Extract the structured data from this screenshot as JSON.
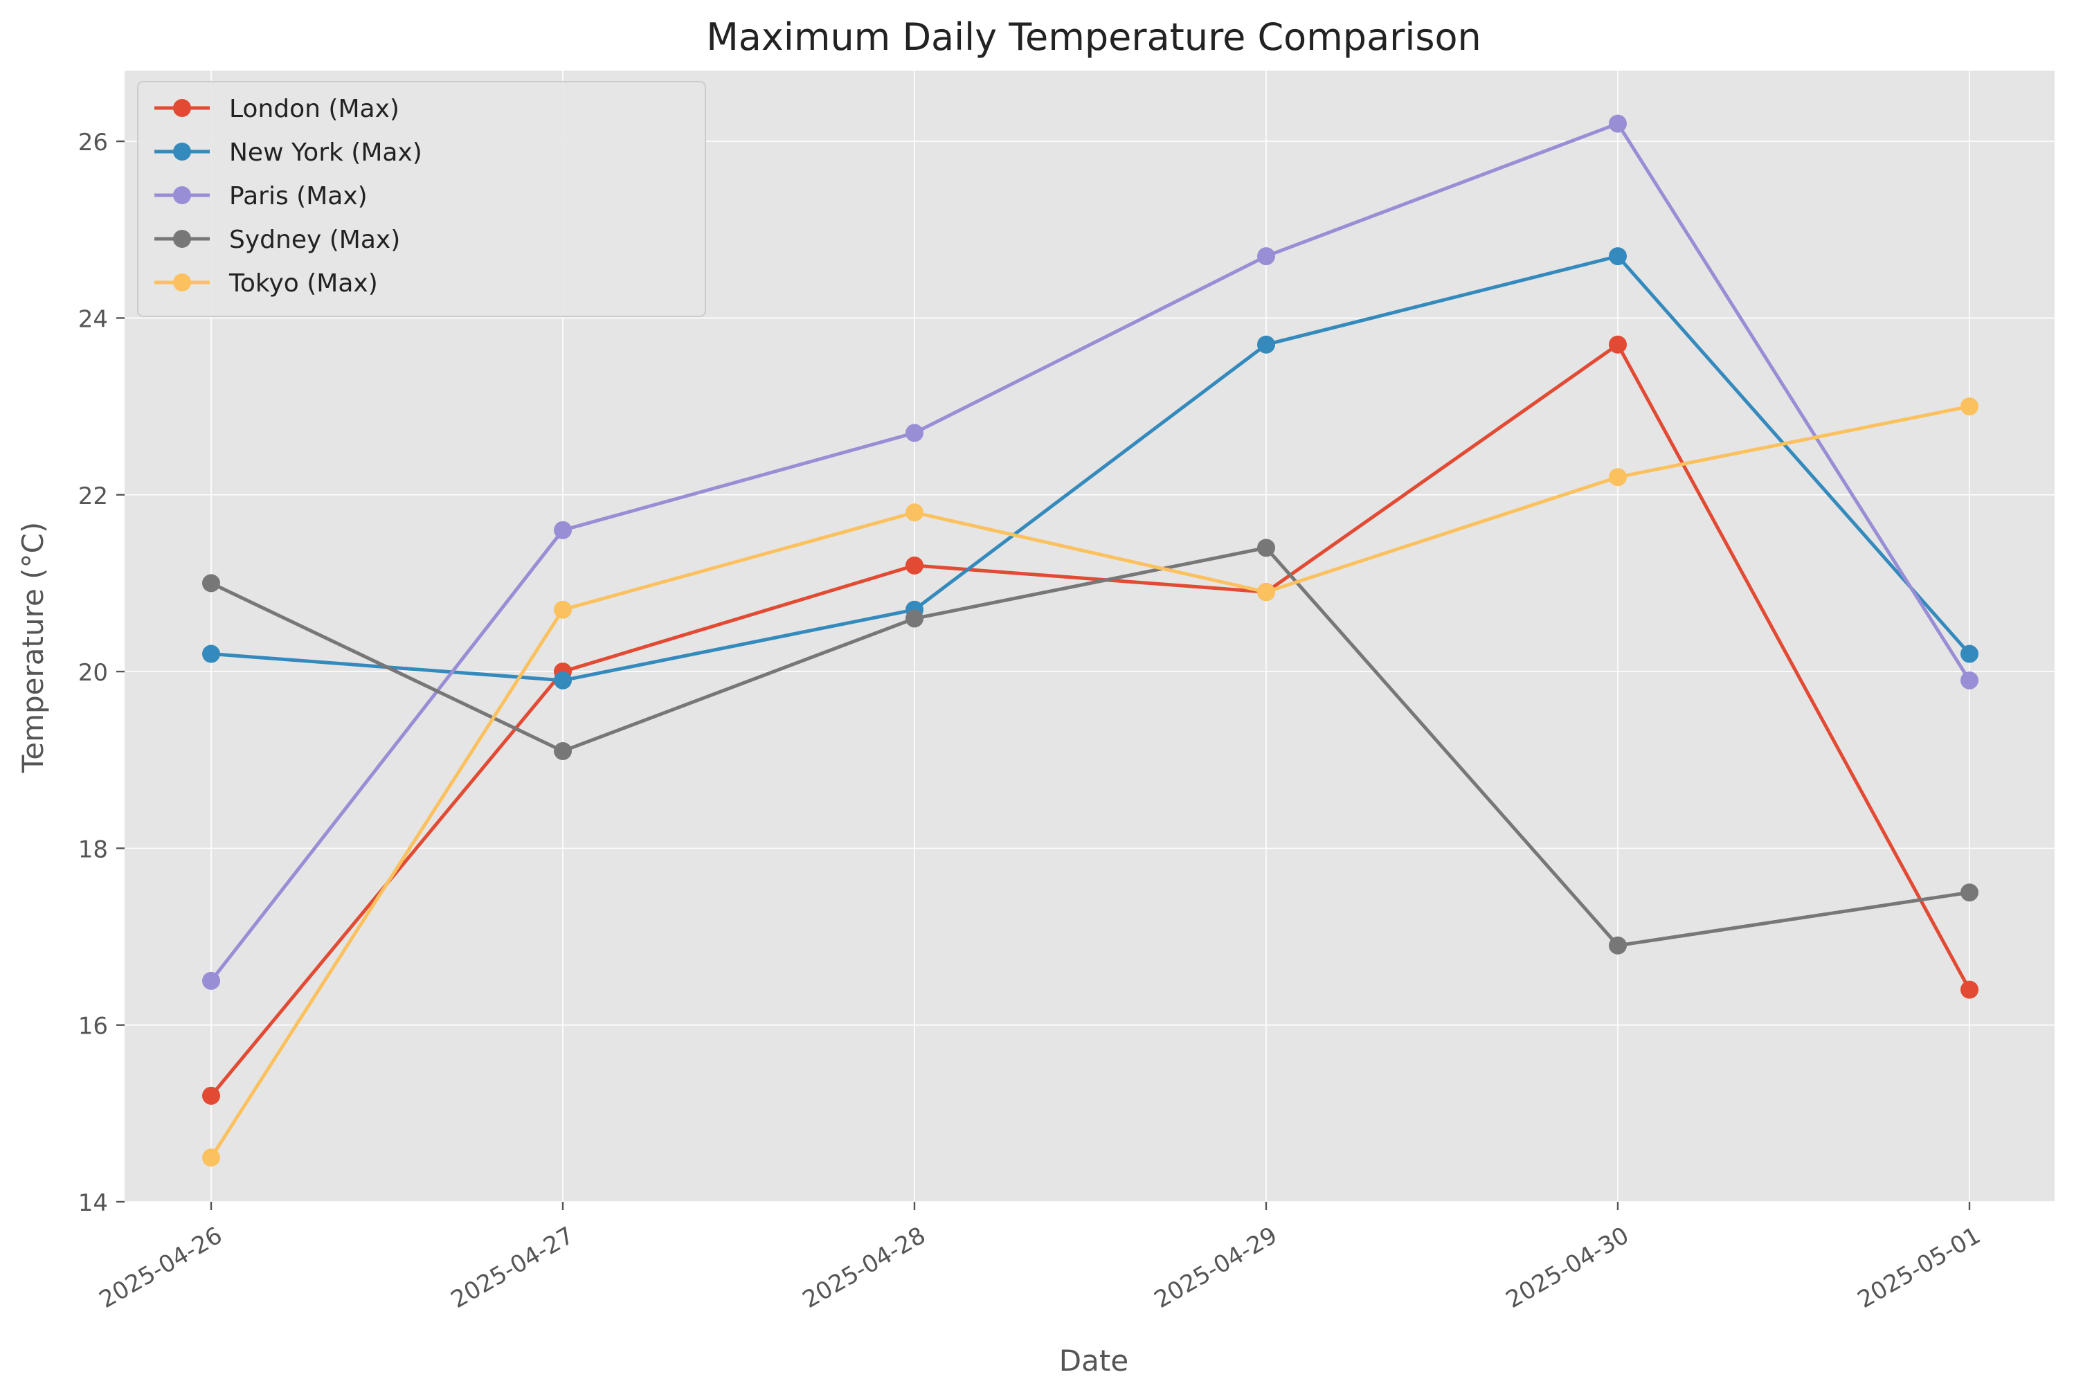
{
  "chart_data": {
    "type": "line",
    "title": "Maximum Daily Temperature Comparison",
    "xlabel": "Date",
    "ylabel": "Temperature (°C)",
    "x": [
      "2025-04-26",
      "2025-04-27",
      "2025-04-28",
      "2025-04-29",
      "2025-04-30",
      "2025-05-01"
    ],
    "ylim": [
      14,
      26.8
    ],
    "yticks": [
      14,
      16,
      18,
      20,
      22,
      24,
      26
    ],
    "grid": true,
    "legend_position": "upper-left",
    "background_color": "#e5e5e5",
    "grid_color": "#ffffff",
    "series": [
      {
        "name": "London (Max)",
        "color": "#e24a33",
        "values": [
          15.2,
          20.0,
          21.2,
          20.9,
          23.7,
          16.4
        ]
      },
      {
        "name": "New York (Max)",
        "color": "#348abd",
        "values": [
          20.2,
          19.9,
          20.7,
          23.7,
          24.7,
          20.2
        ]
      },
      {
        "name": "Paris (Max)",
        "color": "#988ed5",
        "values": [
          16.5,
          21.6,
          22.7,
          24.7,
          26.2,
          19.9
        ]
      },
      {
        "name": "Sydney (Max)",
        "color": "#777777",
        "values": [
          21.0,
          19.1,
          20.6,
          21.4,
          16.9,
          17.5
        ]
      },
      {
        "name": "Tokyo (Max)",
        "color": "#fbc15e",
        "values": [
          14.5,
          20.7,
          21.8,
          20.9,
          22.2,
          23.0
        ]
      }
    ]
  }
}
